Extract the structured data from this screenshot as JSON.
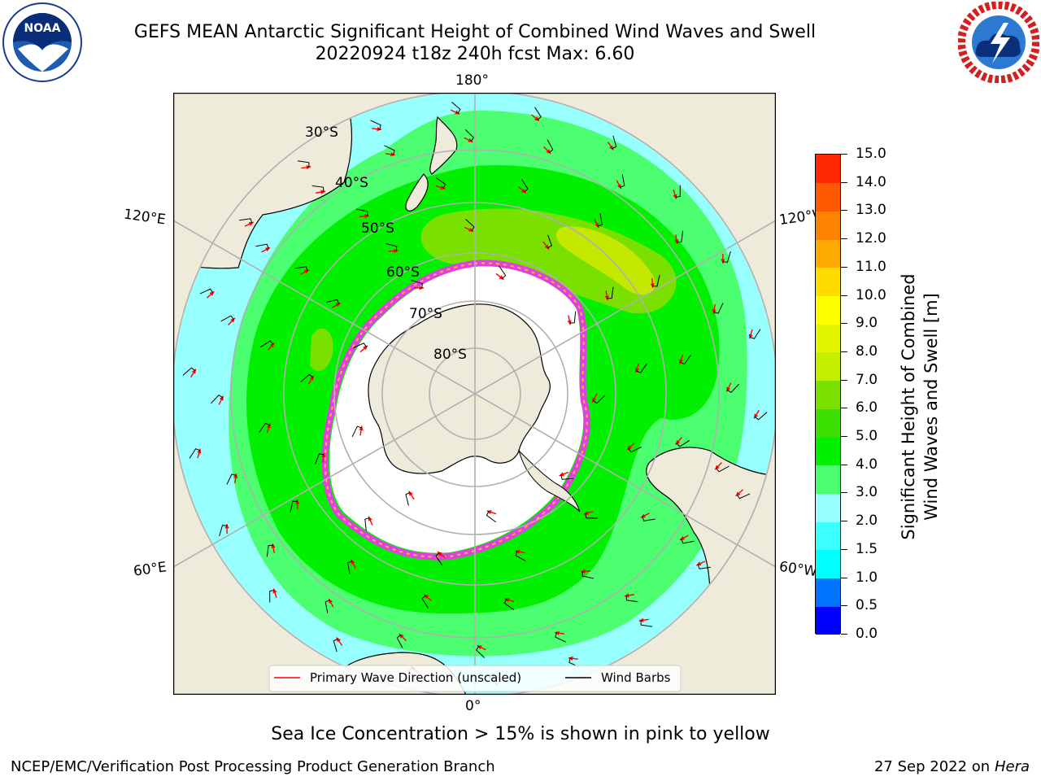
{
  "header": {
    "title_line1": "GEFS MEAN Antarctic Significant Height of Combined Wind Waves and Swell",
    "title_line2": "20220924 t18z 240h fcst   Max: 6.60"
  },
  "logos": {
    "noaa_text": "NOAA",
    "noaa_ring_text": "NATIONAL OCEANIC AND ATMOSPHERIC ADMINISTRATION · U.S. DEPARTMENT OF COMMERCE",
    "nws_ring_text": "NATIONAL WEATHER SERVICE"
  },
  "map": {
    "projection": "south-polar-stereographic",
    "longitude_labels": {
      "top": "180°",
      "bottom": "0°",
      "upper_left": "120°E",
      "upper_right": "120°W",
      "lower_left": "60°E",
      "lower_right": "60°W"
    },
    "latitude_labels": [
      "30°S",
      "40°S",
      "50°S",
      "60°S",
      "70°S",
      "80°S"
    ],
    "legend": {
      "wave_direction": "Primary Wave Direction (unscaled)",
      "wind_barbs": "Wind Barbs"
    },
    "colors": {
      "land": "#efebdb",
      "ocean_0_to_2": "#98ffff",
      "wave_3_to_4": "#4cff70",
      "wave_4_to_5": "#00f000",
      "wave_5_to_6": "#7ae000",
      "wave_6_to_7": "#c4e800",
      "sea_ice_edge": "#e040e0",
      "wave_arrow": "#ff0000",
      "wind_barb": "#000000"
    }
  },
  "colorbar": {
    "label_line1": "Significant Height of Combined",
    "label_line2": "Wind Waves and Swell [m]",
    "ticks": [
      "0.0",
      "0.5",
      "1.0",
      "1.5",
      "2.0",
      "3.0",
      "4.0",
      "5.0",
      "6.0",
      "7.0",
      "8.0",
      "9.0",
      "10.0",
      "11.0",
      "12.0",
      "13.0",
      "14.0",
      "15.0"
    ],
    "colors": [
      "#0000ff",
      "#0073ff",
      "#00ffff",
      "#3cffff",
      "#98ffff",
      "#4cff70",
      "#00f000",
      "#3ce000",
      "#7ae000",
      "#c4f000",
      "#e1f400",
      "#ffff00",
      "#ffdc00",
      "#ffaa00",
      "#ff8200",
      "#ff5a00",
      "#ff2800"
    ]
  },
  "footer": {
    "note": "Sea Ice Concentration > 15% is shown in pink to yellow",
    "left": "NCEP/EMC/Verification Post Processing Product Generation Branch",
    "right_date": "27 Sep 2022 on",
    "right_machine": "Hera"
  }
}
